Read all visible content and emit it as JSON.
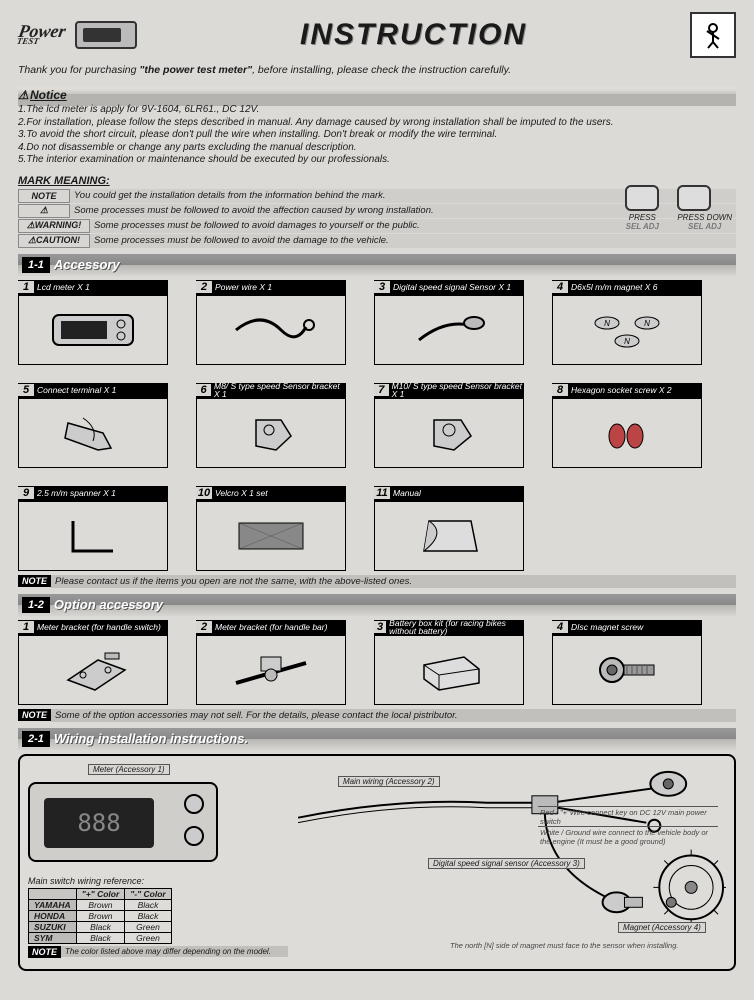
{
  "header": {
    "logo_main": "Power",
    "logo_sub": "TEST",
    "title": "INSTRUCTION"
  },
  "thank_you": {
    "pre": "Thank you for purchasing ",
    "bold": "\"the power test meter\"",
    "post": ", before installing, please check the instruction carefully."
  },
  "notice": {
    "title": "Notice",
    "items": [
      "1.The lcd meter is apply for 9V-1604, 6LR61., DC 12V.",
      "2.For installation, please follow the steps described in manual. Any damage caused by wrong installation shall be imputed to the users.",
      "3.To avoid the short circuit, please don't pull the wire when installing. Don't break or modify the wire terminal.",
      "4.Do not disassemble or change any parts excluding the manual description.",
      "5.The interior examination or maintenance should be executed by our professionals."
    ]
  },
  "mark_meaning": {
    "heading": "MARK MEANING:",
    "rows": [
      {
        "label": "NOTE",
        "text": "You could get the installation details from the information behind the mark."
      },
      {
        "label": "⚠",
        "text": "Some processes must be followed to avoid the affection caused by wrong installation."
      },
      {
        "label": "⚠WARNING!",
        "text": "Some processes must be followed to avoid damages to yourself or the public."
      },
      {
        "label": "⚠CAUTION!",
        "text": "Some processes must be followed to avoid the damage to the vehicle."
      }
    ],
    "press": "PRESS",
    "press_down": "PRESS DOWN",
    "sel_adj": "SEL  ADJ"
  },
  "section_1_1": {
    "num": "1-1",
    "name": "Accessory"
  },
  "accessories": [
    {
      "n": "1",
      "label": "Lcd meter X 1"
    },
    {
      "n": "2",
      "label": "Power wire X 1"
    },
    {
      "n": "3",
      "label": "Digital speed signal Sensor X 1"
    },
    {
      "n": "4",
      "label": "D6x5l m/m magnet X 6"
    },
    {
      "n": "5",
      "label": "Connect terminal X 1"
    },
    {
      "n": "6",
      "label": "M8/ S type speed Sensor bracket X 1"
    },
    {
      "n": "7",
      "label": "M10/ S type speed Sensor bracket X 1"
    },
    {
      "n": "8",
      "label": "Hexagon socket screw X 2"
    },
    {
      "n": "9",
      "label": "2.5 m/m spanner X 1"
    },
    {
      "n": "10",
      "label": "Velcro X 1 set"
    },
    {
      "n": "11",
      "label": "Manual"
    }
  ],
  "note_1_1": "Please contact us if the items you open are not the same, with the above-listed ones.",
  "section_1_2": {
    "num": "1-2",
    "name": "Option accessory"
  },
  "options": [
    {
      "n": "1",
      "label": "Meter bracket (for handle switch)"
    },
    {
      "n": "2",
      "label": "Meter bracket (for handle bar)"
    },
    {
      "n": "3",
      "label": "Battery box kit (for racing bikes without battery)"
    },
    {
      "n": "4",
      "label": "DIsc magnet screw"
    }
  ],
  "note_1_2": "Some of the option accessories may not sell. For the details, please contact the local pistributor.",
  "section_2_1": {
    "num": "2-1",
    "name": "Wiring installation instructions."
  },
  "wiring": {
    "meter_label": "Meter (Accessory 1)",
    "main_wiring": "Main wiring (Accessory 2)",
    "red_wire": "Red / \"+\"Wire connect key on DC 12V main power switch",
    "white_wire": "White / Ground wire connect to the vehicle body or the engine (It must be a good ground)",
    "speed_sensor": "Digital speed signal sensor (Accessory 3)",
    "magnet": "Magnet (Accessory 4)",
    "north_note": "The north [N] side of magnet must face to the sensor when installing.",
    "ref_title": "Main switch wiring reference:",
    "ref_cols": [
      "",
      "\"+\" Color",
      "\"-\" Color"
    ],
    "ref_rows": [
      [
        "YAMAHA",
        "Brown",
        "Black"
      ],
      [
        "HONDA",
        "Brown",
        "Black"
      ],
      [
        "SUZUKI",
        "Black",
        "Green"
      ],
      [
        "SYM",
        "Black",
        "Green"
      ]
    ],
    "ref_note": "The color listed above may differ depending on the model."
  },
  "note_tag": "NOTE",
  "colors": {
    "bg": "#dcdad6",
    "barDark": "#888888",
    "black": "#000000"
  }
}
